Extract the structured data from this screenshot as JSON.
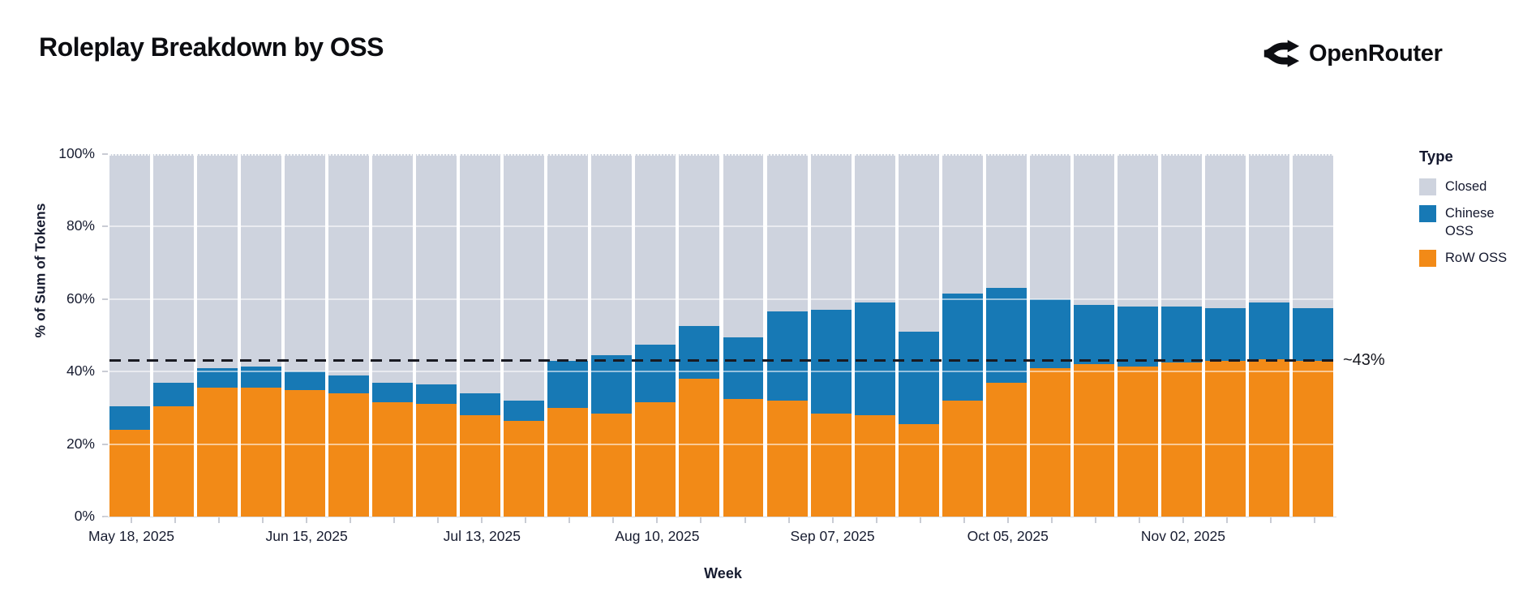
{
  "header": {
    "title": "Roleplay Breakdown by OSS",
    "brand": "OpenRouter"
  },
  "chart_data": {
    "type": "bar",
    "stacked": true,
    "normalized": "percent-of-100",
    "title": "Roleplay Breakdown by OSS",
    "xlabel": "Week",
    "ylabel": "% of Sum of Tokens",
    "ylim": [
      0,
      100
    ],
    "y_tick_labels": [
      "0%",
      "20%",
      "40%",
      "60%",
      "80%",
      "100%"
    ],
    "x_tick_labels": [
      "May 18, 2025",
      "Jun 15, 2025",
      "Jul 13, 2025",
      "Aug 10, 2025",
      "Sep 07, 2025",
      "Oct 05, 2025",
      "Nov 02, 2025"
    ],
    "x_tick_every_n_bars": 4,
    "categories": [
      "May 18, 2025",
      "May 25, 2025",
      "Jun 01, 2025",
      "Jun 08, 2025",
      "Jun 15, 2025",
      "Jun 22, 2025",
      "Jun 29, 2025",
      "Jul 06, 2025",
      "Jul 13, 2025",
      "Jul 20, 2025",
      "Jul 27, 2025",
      "Aug 03, 2025",
      "Aug 10, 2025",
      "Aug 17, 2025",
      "Aug 24, 2025",
      "Aug 31, 2025",
      "Sep 07, 2025",
      "Sep 14, 2025",
      "Sep 21, 2025",
      "Sep 28, 2025",
      "Oct 05, 2025",
      "Oct 12, 2025",
      "Oct 19, 2025",
      "Oct 26, 2025",
      "Nov 02, 2025",
      "Nov 09, 2025",
      "Nov 16, 2025",
      "Nov 23, 2025"
    ],
    "series": [
      {
        "name": "RoW OSS",
        "color": "#f28a17",
        "values": [
          24,
          30.5,
          35.5,
          35.5,
          35,
          34,
          31.5,
          31,
          28,
          26.5,
          30,
          28.5,
          31.5,
          38,
          32.5,
          32,
          28.5,
          28,
          25.5,
          32,
          37,
          41,
          42,
          41.5,
          42.5,
          43,
          43.5,
          43
        ]
      },
      {
        "name": "Chinese OSS",
        "color": "#1779b5",
        "values": [
          6.5,
          6.5,
          5.5,
          6,
          5,
          5,
          5.5,
          5.5,
          6,
          5.5,
          13,
          16,
          16,
          14.5,
          17,
          24.5,
          28.5,
          31,
          25.5,
          29.5,
          26,
          19,
          16.5,
          16.5,
          15.5,
          14.5,
          15.5,
          14.5
        ]
      },
      {
        "name": "Closed",
        "color": "#ced3de",
        "values": [
          69.5,
          63,
          59,
          58.5,
          60,
          61,
          63,
          63.5,
          66,
          68,
          57,
          55.5,
          52.5,
          47.5,
          50.5,
          43.5,
          43,
          41,
          49,
          38.5,
          37,
          40,
          41.5,
          42,
          42,
          42.5,
          41,
          42.5
        ]
      }
    ],
    "stack_order_bottom_to_top": [
      "RoW OSS",
      "Chinese OSS",
      "Closed"
    ],
    "reference_line": {
      "value": 43,
      "label": "~43%",
      "style": "dashed",
      "color": "#191a22"
    },
    "grid": true,
    "legend": {
      "title": "Type",
      "position": "right",
      "entries": [
        "Closed",
        "Chinese OSS",
        "RoW OSS"
      ]
    }
  }
}
